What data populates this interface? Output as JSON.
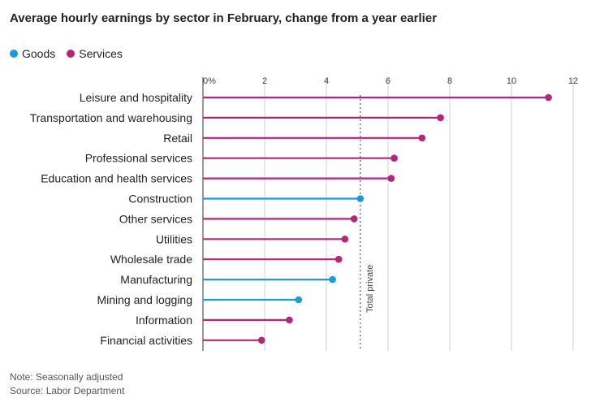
{
  "chart_data": {
    "type": "lollipop",
    "title": "Average hourly earnings by sector in February, change from a year earlier",
    "xlim": [
      0,
      12
    ],
    "x_ticks": [
      {
        "value": 0,
        "label": "0%"
      },
      {
        "value": 2,
        "label": "2"
      },
      {
        "value": 4,
        "label": "4"
      },
      {
        "value": 6,
        "label": "6"
      },
      {
        "value": 8,
        "label": "8"
      },
      {
        "value": 10,
        "label": "10"
      },
      {
        "value": 12,
        "label": "12"
      }
    ],
    "legend": [
      {
        "name": "Goods",
        "color": "#1a9bdb"
      },
      {
        "name": "Services",
        "color": "#b3267a"
      }
    ],
    "reference_line": {
      "value": 5.1,
      "label": "Total private"
    },
    "categories": [
      {
        "label": "Leisure and hospitality",
        "value": 11.2,
        "group": "Services"
      },
      {
        "label": "Transportation and warehousing",
        "value": 7.7,
        "group": "Services"
      },
      {
        "label": "Retail",
        "value": 7.1,
        "group": "Services"
      },
      {
        "label": "Professional services",
        "value": 6.2,
        "group": "Services"
      },
      {
        "label": "Education and health services",
        "value": 6.1,
        "group": "Services"
      },
      {
        "label": "Construction",
        "value": 5.1,
        "group": "Goods"
      },
      {
        "label": "Other services",
        "value": 4.9,
        "group": "Services"
      },
      {
        "label": "Utilities",
        "value": 4.6,
        "group": "Services"
      },
      {
        "label": "Wholesale trade",
        "value": 4.4,
        "group": "Services"
      },
      {
        "label": "Manufacturing",
        "value": 4.2,
        "group": "Goods"
      },
      {
        "label": "Mining and logging",
        "value": 3.1,
        "group": "Goods"
      },
      {
        "label": "Information",
        "value": 2.8,
        "group": "Services"
      },
      {
        "label": "Financial activities",
        "value": 1.9,
        "group": "Services"
      }
    ]
  },
  "notes": {
    "note": "Note: Seasonally adjusted",
    "source": "Source: Labor Department"
  }
}
